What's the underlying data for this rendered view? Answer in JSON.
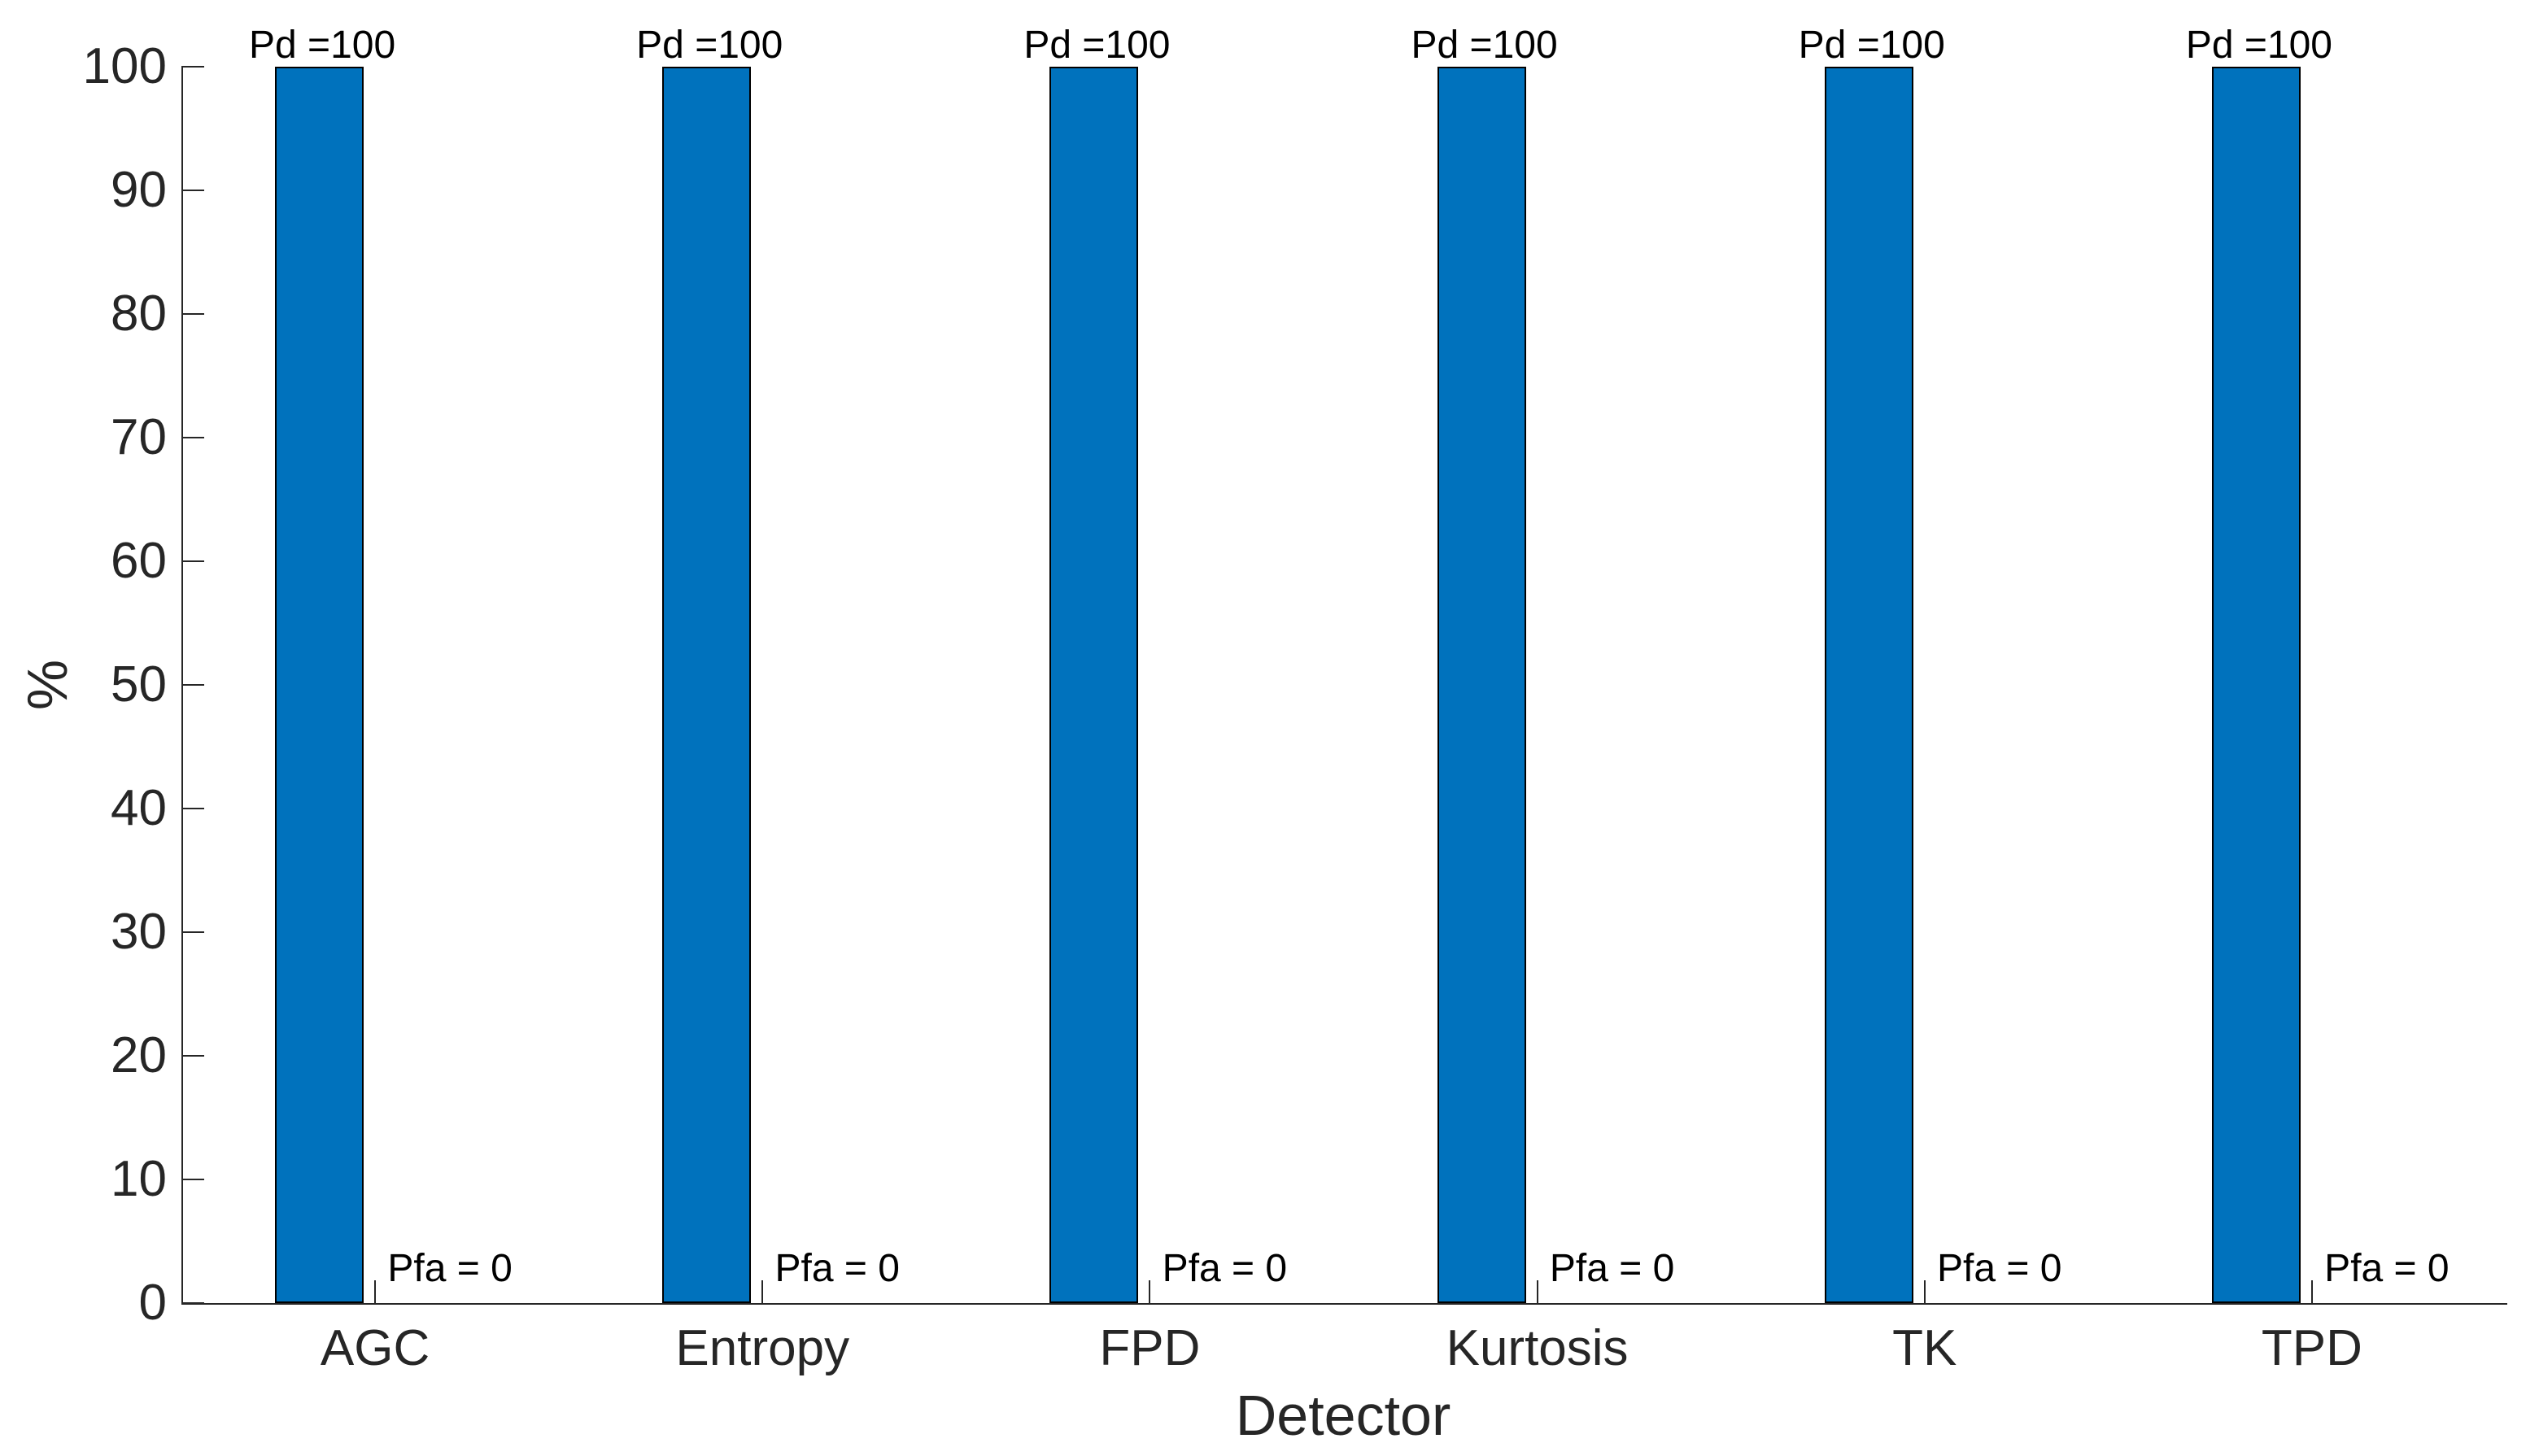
{
  "figure": {
    "background_color": "#ffffff",
    "axis_color": "#262626",
    "annotation_color": "#000000"
  },
  "chart_data": {
    "type": "bar",
    "title": "",
    "xlabel": "Detector",
    "ylabel": "%",
    "categories": [
      "AGC",
      "Entropy",
      "FPD",
      "Kurtosis",
      "TK",
      "TPD"
    ],
    "series": [
      {
        "name": "Pd",
        "values": [
          100,
          100,
          100,
          100,
          100,
          100
        ]
      },
      {
        "name": "Pfa",
        "values": [
          0,
          0,
          0,
          0,
          0,
          0
        ]
      }
    ],
    "annotations": {
      "pd": [
        "Pd =100",
        "Pd =100",
        "Pd =100",
        "Pd =100",
        "Pd =100",
        "Pd =100"
      ],
      "pfa": [
        "Pfa = 0",
        "Pfa = 0",
        "Pfa = 0",
        "Pfa = 0",
        "Pfa = 0",
        "Pfa = 0"
      ]
    },
    "ylim": [
      0,
      100
    ],
    "yticks": [
      0,
      10,
      20,
      30,
      40,
      50,
      60,
      70,
      80,
      90,
      100
    ],
    "grid": false,
    "legend": "none",
    "bar_color": "#0072bd",
    "bar_edge_color": "#000000",
    "axis_color": "#262626"
  }
}
